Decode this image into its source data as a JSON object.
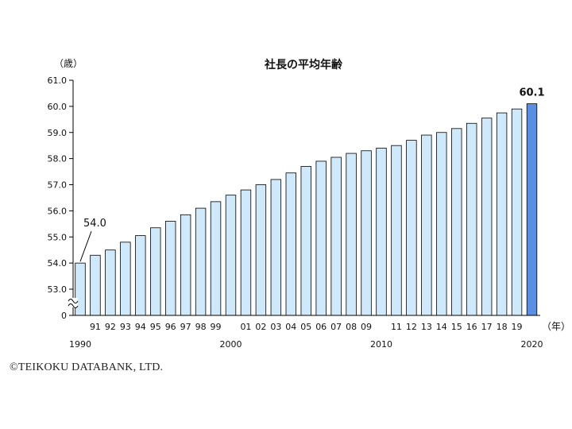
{
  "chart_data": {
    "type": "bar",
    "title": "社長の平均年齢",
    "ylabel": "（歳）",
    "xunit": "（年）",
    "ylim": [
      53.0,
      61.0
    ],
    "y_axis_break": true,
    "y_ticks": [
      "0",
      "53.0",
      "54.0",
      "55.0",
      "56.0",
      "57.0",
      "58.0",
      "59.0",
      "60.0",
      "61.0"
    ],
    "categories": [
      "1990",
      "91",
      "92",
      "93",
      "94",
      "95",
      "96",
      "97",
      "98",
      "99",
      "2000",
      "01",
      "02",
      "03",
      "04",
      "05",
      "06",
      "07",
      "08",
      "09",
      "2010",
      "11",
      "12",
      "13",
      "14",
      "15",
      "16",
      "17",
      "18",
      "19",
      "2020"
    ],
    "tick_labels_upper": [
      "",
      "91",
      "92",
      "93",
      "94",
      "95",
      "96",
      "97",
      "98",
      "99",
      "",
      "01",
      "02",
      "03",
      "04",
      "05",
      "06",
      "07",
      "08",
      "09",
      "",
      "11",
      "12",
      "13",
      "14",
      "15",
      "16",
      "17",
      "18",
      "19",
      ""
    ],
    "tick_labels_lower": [
      {
        "index": 0,
        "label": "1990"
      },
      {
        "index": 10,
        "label": "2000"
      },
      {
        "index": 20,
        "label": "2010"
      },
      {
        "index": 30,
        "label": "2020"
      }
    ],
    "values": [
      54.0,
      54.3,
      54.5,
      54.8,
      55.05,
      55.35,
      55.6,
      55.85,
      56.1,
      56.35,
      56.6,
      56.8,
      57.0,
      57.2,
      57.45,
      57.7,
      57.9,
      58.05,
      58.2,
      58.3,
      58.4,
      58.5,
      58.7,
      58.9,
      59.0,
      59.15,
      59.35,
      59.55,
      59.75,
      59.9,
      60.1
    ],
    "annotations": [
      {
        "index": 0,
        "label": "54.0"
      },
      {
        "index": 30,
        "label": "60.1"
      }
    ],
    "colors": {
      "bar": "#cfe9fb",
      "highlight": "#5b8ee0",
      "bar_stroke": "#000000"
    }
  },
  "footer": {
    "copyright": "©TEIKOKU DATABANK, LTD."
  }
}
